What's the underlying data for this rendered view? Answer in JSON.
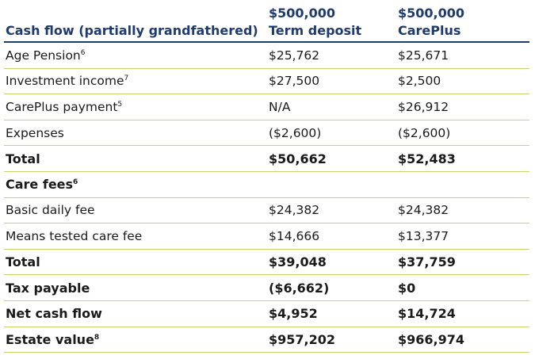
{
  "header": {
    "col1": "Cash flow (partially grandfathered)",
    "col2_line1": "$500,000",
    "col2_line2": "Term deposit",
    "col3_line1": "$500,000",
    "col3_line2": "CarePlus"
  },
  "rows": [
    {
      "label": "Age Pension",
      "sup": "6",
      "v1": "$25,762",
      "v2": "$25,671",
      "bold": false
    },
    {
      "label": "Investment income",
      "sup": "7",
      "v1": "$27,500",
      "v2": "$2,500",
      "bold": false
    },
    {
      "label": "CarePlus payment",
      "sup": "5",
      "v1": "N/A",
      "v2": "$26,912",
      "bold": false
    },
    {
      "label": "Expenses",
      "sup": "",
      "v1": "($2,600)",
      "v2": "($2,600)",
      "bold": false
    },
    {
      "label": "Total",
      "sup": "",
      "v1": "$50,662",
      "v2": "$52,483",
      "bold": true
    },
    {
      "label": "Care fees",
      "sup": "6",
      "v1": "",
      "v2": "",
      "bold": true
    },
    {
      "label": "Basic daily fee",
      "sup": "",
      "v1": "$24,382",
      "v2": "$24,382",
      "bold": false
    },
    {
      "label": "Means tested care fee",
      "sup": "",
      "v1": "$14,666",
      "v2": "$13,377",
      "bold": false
    },
    {
      "label": "Total",
      "sup": "",
      "v1": "$39,048",
      "v2": "$37,759",
      "bold": true
    },
    {
      "label": "Tax payable",
      "sup": "",
      "v1": "($6,662)",
      "v2": "$0",
      "bold": true
    },
    {
      "label": "Net cash flow",
      "sup": "",
      "v1": "$4,952",
      "v2": "$14,724",
      "bold": true
    },
    {
      "label": "Estate value",
      "sup": "8",
      "v1": "$957,202",
      "v2": "$966,974",
      "bold": true
    }
  ],
  "colors": {
    "header_text": "#1f3b6e",
    "rule": "#c9d66b"
  }
}
